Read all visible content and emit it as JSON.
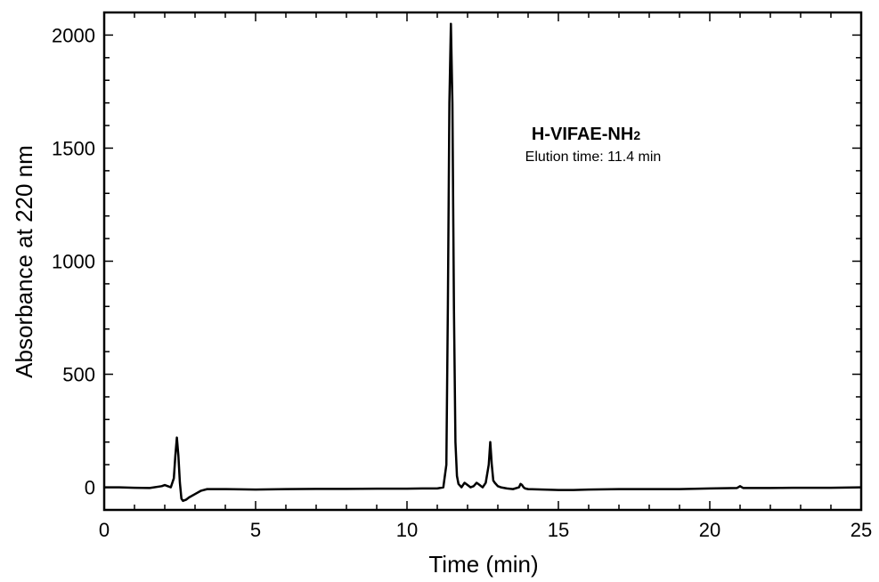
{
  "chart_data": {
    "type": "line",
    "title": "",
    "xlabel": "Time (min)",
    "ylabel": "Absorbance at 220 nm",
    "xlim": [
      0,
      25
    ],
    "ylim": [
      -100,
      2100
    ],
    "xticks": [
      0,
      5,
      10,
      15,
      20,
      25
    ],
    "xtick_labels": [
      "0",
      "5",
      "10",
      "15",
      "20",
      "25"
    ],
    "yticks": [
      0,
      500,
      1000,
      1500,
      2000
    ],
    "ytick_labels": [
      "0",
      "500",
      "1000",
      "1500",
      "2000"
    ],
    "grid": false,
    "legend": "none",
    "line_color": "#000000",
    "annotation": {
      "compound": "H-VIFAE-NH",
      "compound_subscript": "2",
      "elution": "Elution time: 11.4 min"
    },
    "series": [
      {
        "x": [
          0,
          0.5,
          1.0,
          1.5,
          1.9,
          2.0,
          2.1,
          2.2,
          2.3,
          2.35,
          2.4,
          2.45,
          2.5,
          2.55,
          2.6,
          2.7,
          2.8,
          3.0,
          3.2,
          3.4,
          4.0,
          5.0,
          6.0,
          7.0,
          8.0,
          9.0,
          10.0,
          10.5,
          11.0,
          11.2,
          11.3,
          11.35,
          11.4,
          11.45,
          11.5,
          11.55,
          11.6,
          11.65,
          11.7,
          11.8,
          11.9,
          12.0,
          12.1,
          12.2,
          12.3,
          12.4,
          12.45,
          12.5,
          12.6,
          12.7,
          12.75,
          12.8,
          12.85,
          12.9,
          13.0,
          13.1,
          13.3,
          13.5,
          13.7,
          13.75,
          13.8,
          13.85,
          13.9,
          14.0,
          14.5,
          15.0,
          15.5,
          16.0,
          17.0,
          18.0,
          19.0,
          20.0,
          20.9,
          21.0,
          21.1,
          22.0,
          23.0,
          24.0,
          25.0
        ],
        "y": [
          0,
          0,
          -2,
          -3,
          5,
          10,
          5,
          0,
          40,
          140,
          220,
          140,
          20,
          -50,
          -60,
          -55,
          -45,
          -30,
          -15,
          -8,
          -8,
          -10,
          -8,
          -7,
          -7,
          -6,
          -6,
          -5,
          -5,
          0,
          100,
          800,
          1700,
          2050,
          1700,
          800,
          200,
          50,
          15,
          0,
          20,
          10,
          0,
          5,
          20,
          10,
          5,
          0,
          20,
          100,
          200,
          100,
          30,
          20,
          5,
          0,
          -5,
          -8,
          0,
          15,
          10,
          0,
          -5,
          -8,
          -10,
          -12,
          -12,
          -10,
          -8,
          -8,
          -8,
          -5,
          -3,
          5,
          -3,
          -3,
          -2,
          -2,
          0
        ]
      }
    ]
  }
}
